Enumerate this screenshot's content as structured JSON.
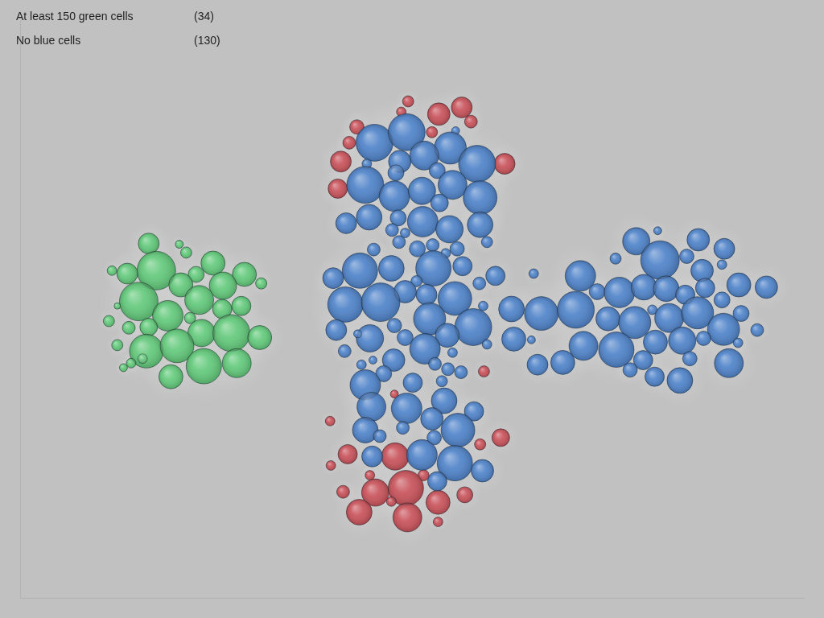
{
  "header": {
    "rows": [
      {
        "label": "At least 150 green cells",
        "count": {
          "value": 34,
          "label": "(34)"
        }
      },
      {
        "label": "No blue cells",
        "count": {
          "value": 130,
          "label": "(130)"
        }
      }
    ]
  },
  "chart_data": {
    "type": "bubble",
    "xlim": [
      0,
      1024
    ],
    "ylim": [
      768,
      0
    ],
    "tick_labels": false,
    "grid": false,
    "series": [
      {
        "color": "#62c97a",
        "points": [
          [
            168,
            297,
            13
          ],
          [
            208,
            298,
            5
          ],
          [
            217,
            309,
            7
          ],
          [
            178,
            333,
            24
          ],
          [
            140,
            337,
            13
          ],
          [
            120,
            333,
            6
          ],
          [
            252,
            323,
            15
          ],
          [
            293,
            338,
            15
          ],
          [
            315,
            350,
            7
          ],
          [
            230,
            338,
            10
          ],
          [
            210,
            352,
            15
          ],
          [
            265,
            353,
            17
          ],
          [
            155,
            374,
            24
          ],
          [
            127,
            380,
            4
          ],
          [
            234,
            372,
            18
          ],
          [
            289,
            380,
            12
          ],
          [
            264,
            384,
            12
          ],
          [
            193,
            393,
            19
          ],
          [
            116,
            400,
            7
          ],
          [
            222,
            396,
            7
          ],
          [
            142,
            409,
            8
          ],
          [
            168,
            408,
            11
          ],
          [
            237,
            416,
            17
          ],
          [
            276,
            416,
            23
          ],
          [
            313,
            422,
            15
          ],
          [
            127,
            432,
            7
          ],
          [
            165,
            440,
            21
          ],
          [
            205,
            433,
            21
          ],
          [
            240,
            460,
            22
          ],
          [
            283,
            456,
            18
          ],
          [
            145,
            456,
            6
          ],
          [
            135,
            462,
            5
          ],
          [
            197,
            474,
            15
          ],
          [
            160,
            450,
            6
          ]
        ]
      },
      {
        "color": "#4f83c9",
        "points": [
          [
            463,
            163,
            23
          ],
          [
            505,
            149,
            23
          ],
          [
            569,
            147,
            5
          ],
          [
            562,
            170,
            20
          ],
          [
            528,
            180,
            18
          ],
          [
            597,
            191,
            23
          ],
          [
            453,
            191,
            6
          ],
          [
            496,
            188,
            14
          ],
          [
            491,
            203,
            10
          ],
          [
            545,
            200,
            10
          ],
          [
            451,
            219,
            23
          ],
          [
            489,
            234,
            19
          ],
          [
            525,
            227,
            17
          ],
          [
            565,
            219,
            18
          ],
          [
            601,
            236,
            21
          ],
          [
            548,
            243,
            11
          ],
          [
            426,
            270,
            13
          ],
          [
            456,
            262,
            16
          ],
          [
            494,
            263,
            10
          ],
          [
            526,
            268,
            19
          ],
          [
            561,
            278,
            17
          ],
          [
            601,
            272,
            16
          ],
          [
            486,
            279,
            8
          ],
          [
            503,
            283,
            6
          ],
          [
            495,
            295,
            8
          ],
          [
            610,
            295,
            7
          ],
          [
            462,
            305,
            8
          ],
          [
            519,
            304,
            10
          ],
          [
            539,
            299,
            8
          ],
          [
            571,
            304,
            9
          ],
          [
            556,
            310,
            6
          ],
          [
            444,
            333,
            22
          ],
          [
            485,
            330,
            16
          ],
          [
            540,
            330,
            22
          ],
          [
            578,
            327,
            12
          ],
          [
            621,
            340,
            12
          ],
          [
            409,
            343,
            13
          ],
          [
            518,
            347,
            7
          ],
          [
            503,
            361,
            14
          ],
          [
            531,
            365,
            13
          ],
          [
            568,
            370,
            21
          ],
          [
            600,
            350,
            8
          ],
          [
            425,
            378,
            22
          ],
          [
            471,
            375,
            24
          ],
          [
            605,
            380,
            6
          ],
          [
            413,
            412,
            13
          ],
          [
            535,
            397,
            20
          ],
          [
            489,
            406,
            9
          ],
          [
            592,
            408,
            23
          ],
          [
            457,
            423,
            17
          ],
          [
            441,
            417,
            5
          ],
          [
            503,
            422,
            10
          ],
          [
            558,
            419,
            15
          ],
          [
            529,
            437,
            19
          ],
          [
            610,
            431,
            6
          ],
          [
            424,
            440,
            8
          ],
          [
            565,
            442,
            6
          ],
          [
            488,
            452,
            14
          ],
          [
            446,
            458,
            6
          ],
          [
            461,
            452,
            5
          ],
          [
            542,
            457,
            8
          ],
          [
            475,
            470,
            10
          ],
          [
            559,
            464,
            8
          ],
          [
            576,
            468,
            8
          ],
          [
            451,
            485,
            19
          ],
          [
            513,
            482,
            12
          ],
          [
            551,
            480,
            7
          ],
          [
            459,
            514,
            18
          ],
          [
            505,
            516,
            19
          ],
          [
            554,
            506,
            16
          ],
          [
            593,
            520,
            12
          ],
          [
            538,
            530,
            14
          ],
          [
            500,
            542,
            8
          ],
          [
            451,
            545,
            16
          ],
          [
            470,
            553,
            8
          ],
          [
            572,
            545,
            21
          ],
          [
            541,
            555,
            9
          ],
          [
            460,
            580,
            13
          ],
          [
            525,
            578,
            19
          ],
          [
            568,
            589,
            22
          ],
          [
            604,
            599,
            14
          ],
          [
            545,
            613,
            12
          ],
          [
            833,
            280,
            5
          ],
          [
            805,
            294,
            17
          ],
          [
            886,
            292,
            14
          ],
          [
            920,
            304,
            13
          ],
          [
            778,
            317,
            7
          ],
          [
            836,
            319,
            24
          ],
          [
            871,
            314,
            9
          ],
          [
            917,
            325,
            6
          ],
          [
            732,
            340,
            19
          ],
          [
            891,
            333,
            14
          ],
          [
            671,
            337,
            6
          ],
          [
            939,
            352,
            15
          ],
          [
            975,
            355,
            14
          ],
          [
            754,
            361,
            10
          ],
          [
            783,
            362,
            19
          ],
          [
            815,
            355,
            16
          ],
          [
            844,
            357,
            16
          ],
          [
            869,
            365,
            12
          ],
          [
            895,
            356,
            12
          ],
          [
            917,
            372,
            10
          ],
          [
            642,
            384,
            16
          ],
          [
            681,
            390,
            21
          ],
          [
            726,
            385,
            23
          ],
          [
            768,
            397,
            15
          ],
          [
            803,
            402,
            20
          ],
          [
            826,
            385,
            6
          ],
          [
            848,
            396,
            18
          ],
          [
            885,
            389,
            20
          ],
          [
            942,
            390,
            10
          ],
          [
            919,
            411,
            20
          ],
          [
            963,
            412,
            8
          ],
          [
            645,
            424,
            15
          ],
          [
            668,
            425,
            5
          ],
          [
            736,
            433,
            18
          ],
          [
            779,
            438,
            22
          ],
          [
            830,
            428,
            15
          ],
          [
            865,
            426,
            17
          ],
          [
            893,
            423,
            9
          ],
          [
            938,
            429,
            6
          ],
          [
            814,
            452,
            12
          ],
          [
            875,
            450,
            9
          ],
          [
            676,
            458,
            13
          ],
          [
            709,
            455,
            15
          ],
          [
            797,
            465,
            9
          ],
          [
            926,
            456,
            18
          ],
          [
            829,
            474,
            12
          ],
          [
            862,
            479,
            16
          ]
        ]
      },
      {
        "color": "#c8525a",
        "points": [
          [
            507,
            108,
            7
          ],
          [
            547,
            125,
            14
          ],
          [
            577,
            116,
            13
          ],
          [
            589,
            135,
            8
          ],
          [
            498,
            122,
            6
          ],
          [
            440,
            142,
            9
          ],
          [
            538,
            149,
            7
          ],
          [
            430,
            163,
            8
          ],
          [
            419,
            188,
            13
          ],
          [
            633,
            191,
            13
          ],
          [
            415,
            224,
            12
          ],
          [
            606,
            467,
            7
          ],
          [
            489,
            497,
            5
          ],
          [
            405,
            533,
            6
          ],
          [
            628,
            555,
            11
          ],
          [
            601,
            564,
            7
          ],
          [
            428,
            577,
            12
          ],
          [
            490,
            580,
            17
          ],
          [
            406,
            592,
            6
          ],
          [
            457,
            605,
            6
          ],
          [
            527,
            605,
            7
          ],
          [
            464,
            628,
            17
          ],
          [
            504,
            622,
            22
          ],
          [
            422,
            627,
            8
          ],
          [
            485,
            640,
            6
          ],
          [
            546,
            641,
            15
          ],
          [
            581,
            631,
            10
          ],
          [
            443,
            654,
            16
          ],
          [
            506,
            661,
            18
          ],
          [
            546,
            667,
            6
          ]
        ]
      }
    ]
  }
}
